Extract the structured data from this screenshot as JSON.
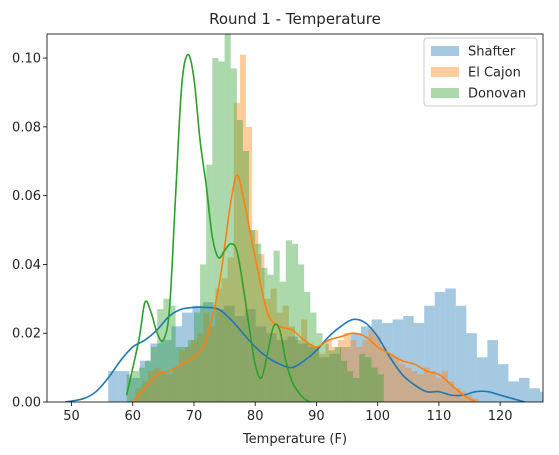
{
  "chart_data": {
    "type": "histogram",
    "title": "Round 1 - Temperature",
    "xlabel": "Temperature (F)",
    "ylabel": "",
    "xlim": [
      46,
      127
    ],
    "ylim": [
      0,
      0.107
    ],
    "x_ticks": [
      50,
      60,
      70,
      80,
      90,
      100,
      110,
      120
    ],
    "y_ticks": [
      0.0,
      0.02,
      0.04,
      0.06,
      0.08,
      0.1
    ],
    "x_tick_labels": [
      "50",
      "60",
      "70",
      "80",
      "90",
      "100",
      "110",
      "120"
    ],
    "y_tick_labels": [
      "0.00",
      "0.02",
      "0.04",
      "0.06",
      "0.08",
      "0.10"
    ],
    "legend_position": "top-right",
    "grid": false,
    "series": [
      {
        "name": "Shafter",
        "color": "#1f77b4",
        "bin_start": 56,
        "bin_width": 1.72,
        "hist": [
          0.009,
          0.009,
          0.007,
          0.012,
          0.017,
          0.018,
          0.022,
          0.026,
          0.028,
          0.029,
          0.027,
          0.028,
          0.025,
          0.027,
          0.022,
          0.02,
          0.018,
          0.019,
          0.017,
          0.016,
          0.013,
          0.014,
          0.016,
          0.02,
          0.022,
          0.024,
          0.023,
          0.024,
          0.025,
          0.023,
          0.028,
          0.032,
          0.033,
          0.028,
          0.02,
          0.013,
          0.018,
          0.011,
          0.006,
          0.007,
          0.004,
          0.003,
          0.003,
          0.001,
          0.002,
          0.005,
          0.0,
          0.0,
          0.0,
          0.0,
          0.001,
          0.001,
          0.008,
          0.002
        ],
        "kde_x": [
          49,
          52,
          54,
          56,
          58,
          60,
          62,
          64,
          66,
          68,
          70,
          72,
          74,
          76,
          78,
          80,
          82,
          84,
          86,
          88,
          90,
          92,
          94,
          96,
          98,
          100,
          102,
          104,
          106,
          108,
          110,
          112,
          114,
          116,
          118,
          120,
          122,
          124
        ],
        "kde_y": [
          0.0,
          0.001,
          0.003,
          0.007,
          0.012,
          0.016,
          0.018,
          0.021,
          0.025,
          0.027,
          0.0275,
          0.0275,
          0.027,
          0.024,
          0.02,
          0.016,
          0.013,
          0.011,
          0.01,
          0.012,
          0.015,
          0.019,
          0.022,
          0.024,
          0.023,
          0.019,
          0.013,
          0.008,
          0.005,
          0.003,
          0.003,
          0.002,
          0.002,
          0.003,
          0.003,
          0.002,
          0.001,
          0.0
        ]
      },
      {
        "name": "El Cajon",
        "color": "#ff7f0e",
        "bin_start": 60.5,
        "bin_width": 1.0,
        "hist": [
          0.004,
          0.006,
          0.009,
          0.01,
          0.009,
          0.008,
          0.01,
          0.015,
          0.016,
          0.018,
          0.02,
          0.026,
          0.022,
          0.033,
          0.036,
          0.042,
          0.087,
          0.101,
          0.08,
          0.05,
          0.043,
          0.03,
          0.033,
          0.026,
          0.028,
          0.022,
          0.018,
          0.024,
          0.017,
          0.016,
          0.014,
          0.018,
          0.016,
          0.018,
          0.02,
          0.018,
          0.016,
          0.018,
          0.021,
          0.019,
          0.016,
          0.014,
          0.013,
          0.011,
          0.01,
          0.009,
          0.008,
          0.01,
          0.009,
          0.007,
          0.009,
          0.006,
          0.004,
          0.003,
          0.002,
          0.001
        ],
        "kde_x": [
          60,
          62,
          64,
          66,
          68,
          70,
          72,
          74,
          75,
          76,
          77,
          78,
          80,
          82,
          84,
          86,
          88,
          90,
          92,
          94,
          96,
          98,
          100,
          102,
          104,
          106,
          108,
          110,
          112,
          114,
          116
        ],
        "kde_y": [
          0.0,
          0.004,
          0.008,
          0.009,
          0.011,
          0.013,
          0.018,
          0.033,
          0.045,
          0.058,
          0.066,
          0.06,
          0.042,
          0.026,
          0.022,
          0.021,
          0.018,
          0.016,
          0.018,
          0.019,
          0.02,
          0.019,
          0.016,
          0.014,
          0.012,
          0.011,
          0.009,
          0.008,
          0.005,
          0.002,
          0.0
        ]
      },
      {
        "name": "Donovan",
        "color": "#2ca02c",
        "bin_start": 59.0,
        "bin_width": 1.0,
        "hist": [
          0.008,
          0.009,
          0.01,
          0.012,
          0.016,
          0.027,
          0.03,
          0.028,
          0.016,
          0.016,
          0.018,
          0.026,
          0.04,
          0.069,
          0.1,
          0.099,
          0.108,
          0.097,
          0.082,
          0.073,
          0.05,
          0.046,
          0.039,
          0.037,
          0.044,
          0.035,
          0.047,
          0.046,
          0.04,
          0.032,
          0.026,
          0.02,
          0.017,
          0.015,
          0.016,
          0.012,
          0.009,
          0.007,
          0.014,
          0.013,
          0.01,
          0.008
        ],
        "kde_x": [
          59,
          61,
          62,
          63,
          64,
          65,
          66,
          67,
          68,
          69,
          70,
          71,
          72,
          73,
          74,
          75,
          76,
          77,
          78,
          79,
          80,
          81,
          82,
          83,
          84,
          85,
          86,
          87,
          88,
          89
        ],
        "kde_y": [
          0.002,
          0.018,
          0.029,
          0.026,
          0.02,
          0.018,
          0.027,
          0.06,
          0.092,
          0.101,
          0.094,
          0.076,
          0.063,
          0.048,
          0.042,
          0.044,
          0.046,
          0.044,
          0.034,
          0.022,
          0.011,
          0.007,
          0.014,
          0.022,
          0.021,
          0.012,
          0.006,
          0.003,
          0.001,
          0.0
        ]
      }
    ]
  }
}
